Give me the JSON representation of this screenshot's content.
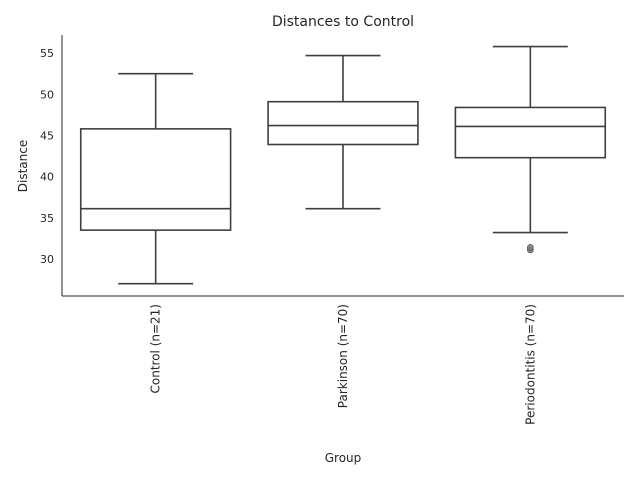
{
  "chart_data": {
    "type": "box",
    "title": "Distances to Control",
    "xlabel": "Group",
    "ylabel": "Distance",
    "ylim": [
      25.5,
      57.2
    ],
    "yticks": [
      30,
      35,
      40,
      45,
      50,
      55
    ],
    "grid": false,
    "categories": [
      "Control (n=21)",
      "Parkinson (n=70)",
      "Periodontitis (n=70)"
    ],
    "boxes": [
      {
        "whisker_low": 27.0,
        "q1": 33.5,
        "median": 36.1,
        "q3": 45.8,
        "whisker_high": 52.5,
        "outliers": []
      },
      {
        "whisker_low": 36.1,
        "q1": 43.9,
        "median": 46.2,
        "q3": 49.1,
        "whisker_high": 54.7,
        "outliers": []
      },
      {
        "whisker_low": 33.2,
        "q1": 42.3,
        "median": 46.1,
        "q3": 48.4,
        "whisker_high": 55.8,
        "outliers": [
          31.1,
          31.4
        ]
      }
    ],
    "colors": {
      "line": "#3f3f3f",
      "axis": "#262626",
      "outlier": "#7f7f7f"
    }
  }
}
